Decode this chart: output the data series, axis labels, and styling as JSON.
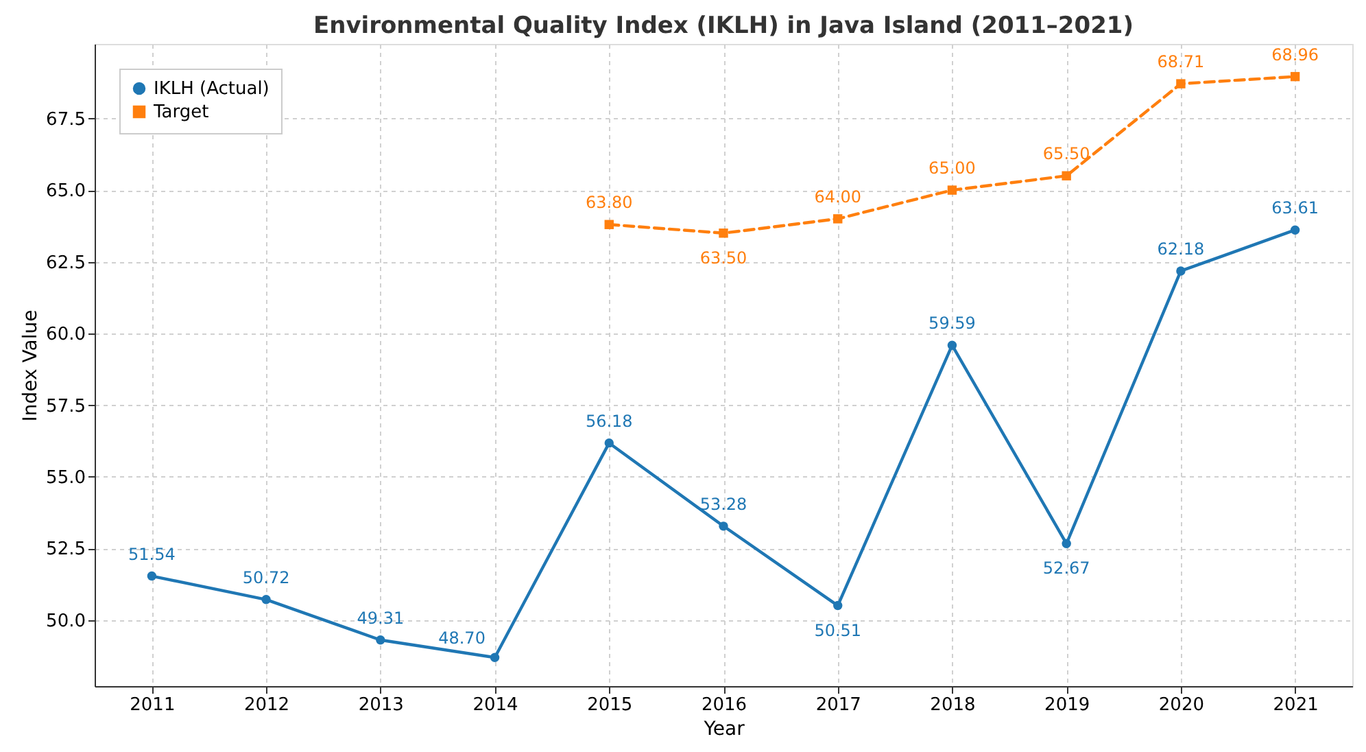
{
  "chart_data": {
    "type": "line",
    "title": "Environmental Quality Index (IKLH) in Java Island (2011–2021)",
    "xlabel": "Year",
    "ylabel": "Index Value",
    "x": [
      2011,
      2012,
      2013,
      2014,
      2015,
      2016,
      2017,
      2018,
      2019,
      2020,
      2021
    ],
    "series": [
      {
        "name": "IKLH (Actual)",
        "color": "#1f77b4",
        "marker": "circle",
        "line_style": "solid",
        "values": [
          51.54,
          50.72,
          49.31,
          48.7,
          56.18,
          53.28,
          50.51,
          59.59,
          52.67,
          62.18,
          63.61
        ],
        "value_labels": [
          "51.54",
          "50.72",
          "49.31",
          "48.70",
          "56.18",
          "53.28",
          "50.51",
          "59.59",
          "52.67",
          "62.18",
          "63.61"
        ]
      },
      {
        "name": "Target",
        "color": "#ff7f0e",
        "marker": "square",
        "line_style": "dashed",
        "x": [
          2015,
          2016,
          2017,
          2018,
          2019,
          2020,
          2021
        ],
        "values": [
          63.8,
          63.5,
          64.0,
          65.0,
          65.5,
          68.71,
          68.96
        ],
        "value_labels": [
          "63.80",
          "63.50",
          "64.00",
          "65.00",
          "65.50",
          "68.71",
          "68.96"
        ]
      }
    ],
    "xlim": [
      2010.5,
      2021.5
    ],
    "xticks": [
      2011,
      2012,
      2013,
      2014,
      2015,
      2016,
      2017,
      2018,
      2019,
      2020,
      2021
    ],
    "ylim": [
      47.7,
      70.1
    ],
    "yticks": [
      {
        "value": 50,
        "label": "50.0"
      },
      52.5,
      {
        "value": 55,
        "label": "55.0"
      },
      57.5,
      {
        "value": 60,
        "label": "60.0"
      },
      62.5,
      {
        "value": 65,
        "label": "65.0"
      },
      67.5
    ],
    "grid": true,
    "legend": "top left"
  }
}
